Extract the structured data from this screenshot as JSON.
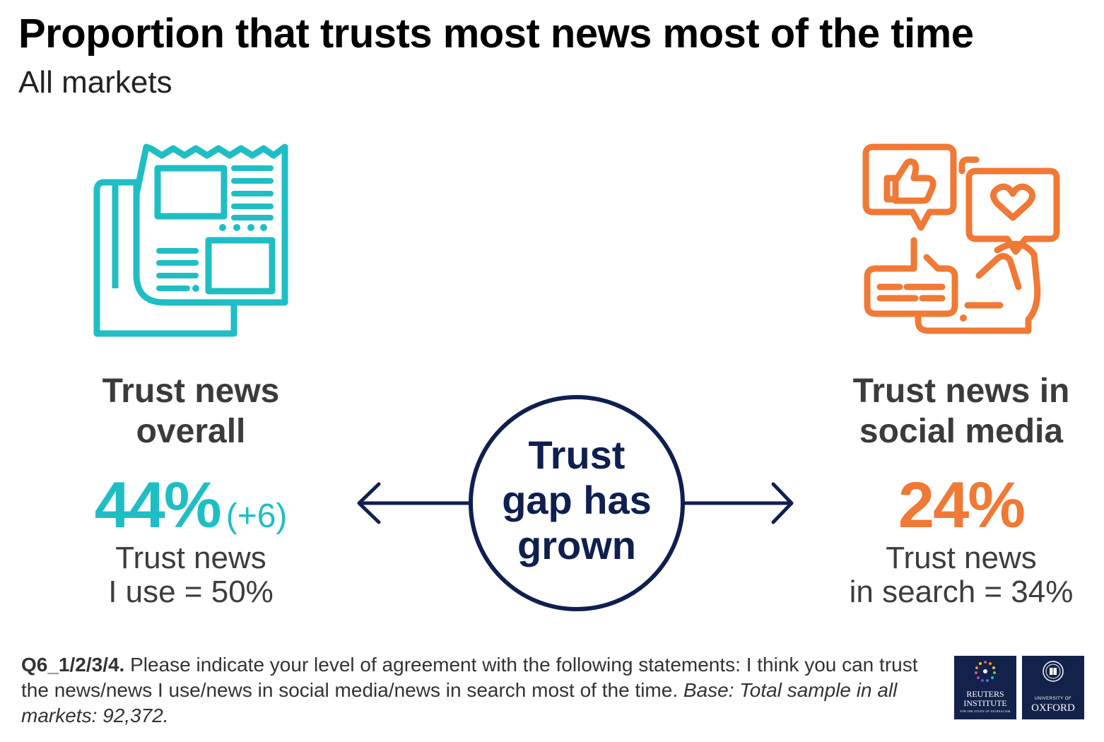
{
  "title": "Proportion that trusts most news most of the time",
  "subtitle": "All markets",
  "left": {
    "heading_line1": "Trust news",
    "heading_line2": "overall",
    "value": "44%",
    "change": "(+6)",
    "note_line1": "Trust news",
    "note_line2": "I use = 50%",
    "icon": "newspaper-icon",
    "color": "#1fbec4"
  },
  "right": {
    "heading_line1": "Trust news in",
    "heading_line2": "social media",
    "value": "24%",
    "note_line1": "Trust news",
    "note_line2": "in search = 34%",
    "icon": "social-media-icon",
    "color": "#f07935"
  },
  "center": {
    "line1": "Trust",
    "line2": "gap has",
    "line3": "grown",
    "color": "#0f1f4f"
  },
  "footnote": {
    "question": "Q6_1/2/3/4.",
    "text": " Please indicate your level of agreement with the following statements: I think you can trust the news/news I use/news in social media/news in search most of the time. ",
    "base": "Base: Total sample in all markets: 92,372."
  },
  "logos": {
    "reuters_line1": "REUTERS",
    "reuters_line2": "INSTITUTE",
    "reuters_tagline": "FOR THE STUDY OF JOURNALISM",
    "oxford_small": "UNIVERSITY OF",
    "oxford_big": "OXFORD"
  }
}
